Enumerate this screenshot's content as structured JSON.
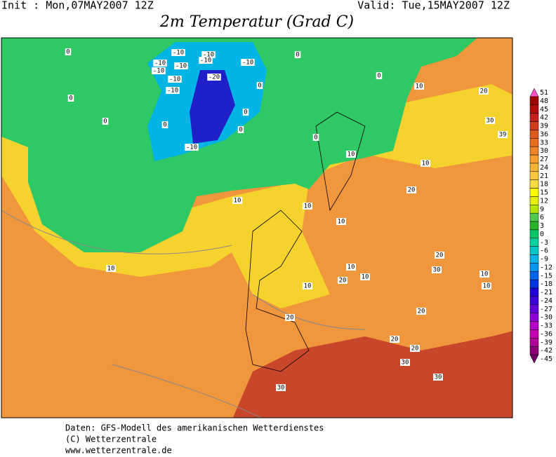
{
  "header": {
    "init": "Init : Mon,07MAY2007 12Z",
    "valid": "Valid: Tue,15MAY2007 12Z",
    "title": "2m Temperatur (Grad C)"
  },
  "map": {
    "contour_labels": [
      "0",
      "-10",
      "-10",
      "-10",
      "-10",
      "-10",
      "-10",
      "-10",
      "-10",
      "-20",
      "-10",
      "0",
      "0",
      "0",
      "10",
      "20",
      "0",
      "0",
      "0",
      "0",
      "0",
      "-10",
      "0",
      "30",
      "39",
      "10",
      "10",
      "10",
      "10",
      "20",
      "10",
      "10",
      "10",
      "20",
      "30",
      "10",
      "10",
      "20",
      "10",
      "10",
      "20",
      "20",
      "20",
      "20",
      "30",
      "30",
      "30"
    ]
  },
  "legend": {
    "labels": [
      51,
      48,
      45,
      42,
      39,
      36,
      33,
      30,
      27,
      24,
      21,
      18,
      15,
      12,
      9,
      6,
      3,
      0,
      -3,
      -6,
      -9,
      -12,
      -15,
      -18,
      -21,
      -24,
      -27,
      -30,
      -33,
      -36,
      -39,
      -42,
      -45
    ],
    "colors": [
      "#ff50c8",
      "#a00000",
      "#b40a0a",
      "#c81e1e",
      "#d23c1e",
      "#dc5a1e",
      "#e66e1e",
      "#f08228",
      "#f5a02d",
      "#f5b432",
      "#fac83c",
      "#fadc3c",
      "#ffff00",
      "#e6f000",
      "#b4e600",
      "#50c850",
      "#28b428",
      "#00c864",
      "#00d2a0",
      "#00c8c8",
      "#00b4e6",
      "#0096f0",
      "#0064f0",
      "#0032e6",
      "#1e00dc",
      "#3c00dc",
      "#6400dc",
      "#8c00dc",
      "#b400c8",
      "#c800b4",
      "#b40096",
      "#8c0078",
      "#6e0064"
    ]
  },
  "footer": {
    "lines": [
      "Daten: GFS-Modell des amerikanischen Wetterdienstes",
      "(C) Wetterzentrale",
      "www.wetterzentrale.de"
    ]
  }
}
